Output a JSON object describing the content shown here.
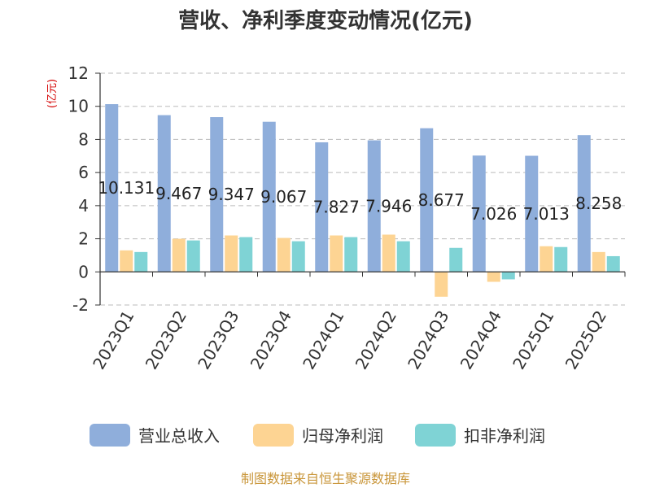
{
  "chart_data": {
    "type": "bar",
    "title": "营收、净利季度变动情况(亿元)",
    "ylabel": "(亿元)",
    "ylim": [
      -2,
      12
    ],
    "yticks": [
      12,
      10,
      8,
      6,
      4,
      2,
      0,
      -2
    ],
    "grid": true,
    "legend_position": "bottom",
    "categories": [
      "2023Q1",
      "2023Q2",
      "2023Q3",
      "2023Q4",
      "2024Q1",
      "2024Q2",
      "2024Q3",
      "2024Q4",
      "2025Q1",
      "2025Q2"
    ],
    "series": [
      {
        "name": "营业总收入",
        "color": "#8faedb",
        "values": [
          10.131,
          9.467,
          9.347,
          9.067,
          7.827,
          7.946,
          8.677,
          7.026,
          7.013,
          8.258
        ]
      },
      {
        "name": "归母净利润",
        "color": "#fdd493",
        "values": [
          1.3,
          2.0,
          2.2,
          2.05,
          2.2,
          2.25,
          -1.5,
          -0.6,
          1.55,
          1.2
        ]
      },
      {
        "name": "扣非净利润",
        "color": "#7fd3d5",
        "values": [
          1.2,
          1.9,
          2.1,
          1.85,
          2.1,
          1.85,
          1.45,
          -0.45,
          1.5,
          0.95
        ]
      }
    ],
    "data_labels": [
      "10.131",
      "9.467",
      "9.347",
      "9.067",
      "7.827",
      "7.946",
      "8.677",
      "7.026",
      "7.013",
      "8.258"
    ]
  },
  "source": "制图数据来自恒生聚源数据库"
}
